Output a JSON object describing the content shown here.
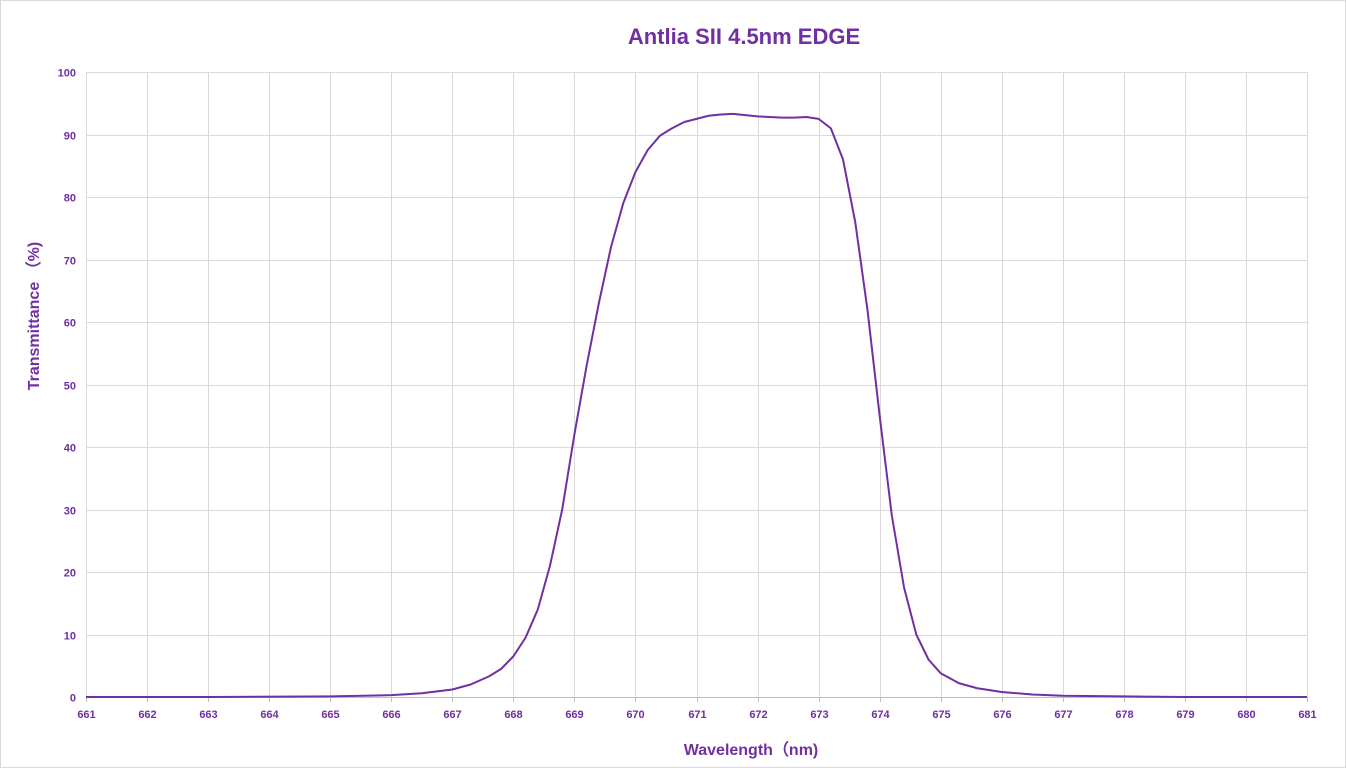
{
  "chart_data": {
    "type": "line",
    "title": "Antlia SII 4.5nm EDGE",
    "xlabel": "Wavelength（nm)",
    "ylabel": "Transmittance （%)",
    "xlim": [
      661,
      681
    ],
    "ylim": [
      0,
      100
    ],
    "x_ticks": [
      "661",
      "662",
      "663",
      "664",
      "665",
      "666",
      "667",
      "668",
      "669",
      "670",
      "671",
      "672",
      "673",
      "674",
      "675",
      "676",
      "677",
      "678",
      "679",
      "680",
      "681"
    ],
    "y_ticks": [
      "0",
      "10",
      "20",
      "30",
      "40",
      "50",
      "60",
      "70",
      "80",
      "90",
      "100"
    ],
    "grid": true,
    "legend": "none",
    "series_color": "#7030a0",
    "series": [
      {
        "x": [
          661,
          663,
          665,
          666,
          666.5,
          667,
          667.3,
          667.6,
          667.8,
          668.0,
          668.2,
          668.4,
          668.6,
          668.8,
          669.0,
          669.2,
          669.4,
          669.6,
          669.8,
          670.0,
          670.2,
          670.4,
          670.6,
          670.8,
          671.0,
          671.2,
          671.4,
          671.6,
          671.8,
          672.0,
          672.2,
          672.4,
          672.6,
          672.8,
          673.0,
          673.2,
          673.4,
          673.6,
          673.8,
          674.0,
          674.2,
          674.4,
          674.6,
          674.8,
          675.0,
          675.3,
          675.6,
          676.0,
          676.5,
          677.0,
          678,
          679,
          680,
          681
        ],
        "y": [
          0,
          0,
          0.1,
          0.3,
          0.6,
          1.2,
          2.0,
          3.3,
          4.5,
          6.5,
          9.5,
          14,
          21,
          30,
          42,
          53,
          63,
          72,
          79,
          84,
          87.5,
          89.8,
          91,
          92,
          92.5,
          93,
          93.2,
          93.3,
          93.1,
          92.9,
          92.8,
          92.7,
          92.7,
          92.8,
          92.5,
          91,
          86,
          76,
          62,
          45,
          29,
          17.5,
          10,
          6,
          3.8,
          2.2,
          1.4,
          0.8,
          0.4,
          0.2,
          0.1,
          0,
          0,
          0
        ]
      }
    ]
  }
}
